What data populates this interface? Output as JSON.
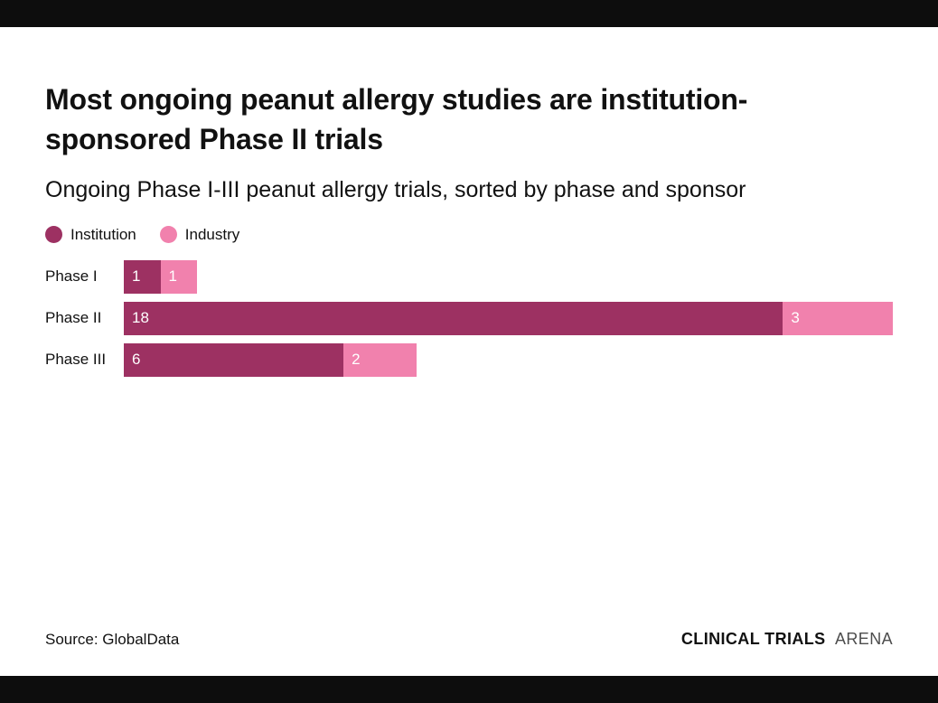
{
  "chart_data": {
    "type": "bar",
    "orientation": "horizontal",
    "stacked": true,
    "title": "Most ongoing peanut allergy studies are institution-sponsored Phase II trials",
    "subtitle": "Ongoing Phase I-III peanut allergy trials, sorted by phase and sponsor",
    "categories": [
      "Phase I",
      "Phase II",
      "Phase III"
    ],
    "series": [
      {
        "name": "Institution",
        "color": "#9d3162",
        "values": [
          1,
          18,
          6
        ]
      },
      {
        "name": "Industry",
        "color": "#f181ad",
        "values": [
          1,
          3,
          2
        ]
      }
    ],
    "xlim": [
      0,
      21
    ],
    "value_labels": "inside-start",
    "value_label_color": "#ffffff",
    "legend_position": "top-left",
    "grid": false
  },
  "footer": {
    "source": "Source: GlobalData",
    "brand": {
      "bold": "CLINICAL TRIALS",
      "light": "ARENA"
    }
  }
}
